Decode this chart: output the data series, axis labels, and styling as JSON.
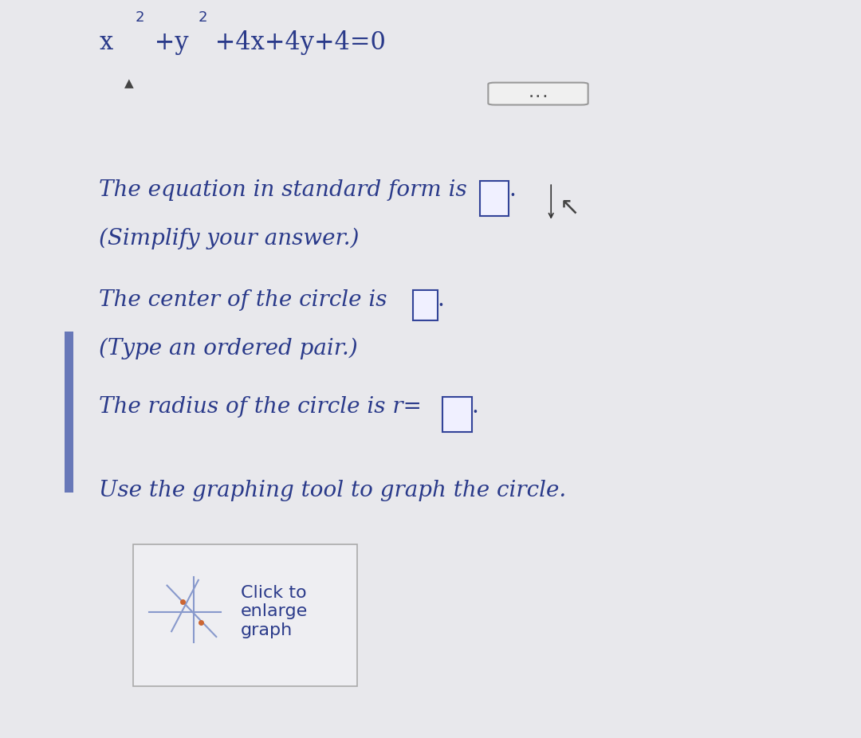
{
  "bg_color_top": "#dcdcdc",
  "bg_color_content": "#e8e8ec",
  "header_bg": "#e0dfe0",
  "text_color": "#2a3a8a",
  "dark_text": "#111111",
  "line1_main": "The equation in standard form is",
  "line1_sub": "(Simplify your answer.)",
  "line2_main": "The center of the circle is",
  "line2_sub": "(Type an ordered pair.)",
  "line3_main": "The radius of the circle is r=",
  "line4_main": "Use the graphing tool to graph the circle.",
  "graph_label1": "Click to",
  "graph_label2": "enlarge",
  "graph_label3": "graph",
  "font_size_title": 22,
  "font_size_body": 20,
  "font_size_sub": 14,
  "sidebar_color": "#6878b8",
  "separator_color": "#888888",
  "dots_color": "#555555",
  "graph_cross_color": "#8899cc",
  "graph_dot_color": "#cc6633",
  "box_edge_color": "#334499",
  "box_face_color": "#f0f0ff"
}
